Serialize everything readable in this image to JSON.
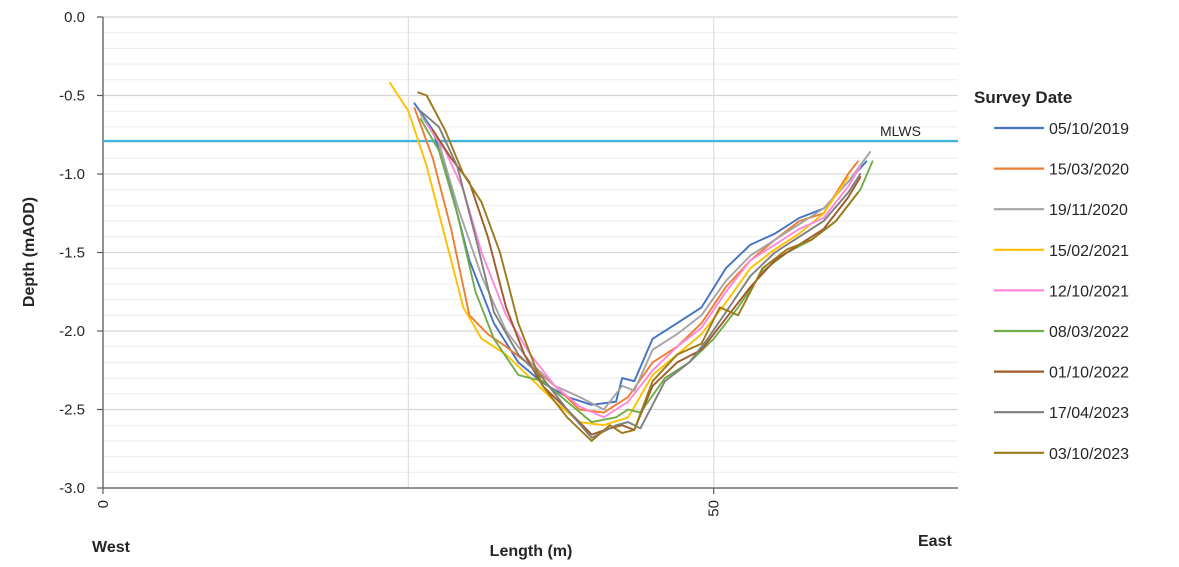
{
  "chart_data": {
    "type": "line",
    "xlabel": "Length (m)",
    "ylabel": "Depth (mAOD)",
    "xlim": [
      0,
      70
    ],
    "ylim": [
      -3.0,
      0.0
    ],
    "x_ticks": [
      0,
      50
    ],
    "y_ticks": [
      0.0,
      -0.5,
      -1.0,
      -1.5,
      -2.0,
      -2.5,
      -3.0
    ],
    "y_tick_labels": [
      "0.0",
      "-0.5",
      "-1.0",
      "-1.5",
      "-2.0",
      "-2.5",
      "-3.0"
    ],
    "x_tick_labels": [
      "0",
      "50"
    ],
    "x_end_labels": {
      "left": "West",
      "right": "East"
    },
    "grid": "major vertical, minor horizontal",
    "legend": {
      "title": "Survey Date",
      "placement": "right"
    },
    "reference_line": {
      "label": "MLWS",
      "y": -0.79,
      "color": "#3fb6e0"
    },
    "series": [
      {
        "name": "05/10/2019",
        "color": "#4472c4",
        "x": [
          25.5,
          27,
          28.5,
          30,
          32,
          34,
          36,
          38,
          40,
          42,
          42.5,
          43.5,
          45,
          47,
          49,
          51,
          53,
          55,
          57,
          59,
          61,
          62.5
        ],
        "y": [
          -0.55,
          -0.72,
          -1.1,
          -1.55,
          -1.95,
          -2.2,
          -2.33,
          -2.42,
          -2.47,
          -2.45,
          -2.3,
          -2.32,
          -2.05,
          -1.95,
          -1.85,
          -1.6,
          -1.45,
          -1.38,
          -1.28,
          -1.22,
          -1.05,
          -0.92
        ]
      },
      {
        "name": "15/03/2020",
        "color": "#ed7d31",
        "x": [
          25.5,
          27,
          28.5,
          30,
          31.5,
          33,
          35,
          37,
          39,
          41,
          43,
          45,
          47,
          49,
          51,
          53,
          55,
          57,
          59,
          61,
          61.8
        ],
        "y": [
          -0.58,
          -0.9,
          -1.35,
          -1.9,
          -2.02,
          -2.1,
          -2.22,
          -2.35,
          -2.5,
          -2.52,
          -2.42,
          -2.2,
          -2.1,
          -1.95,
          -1.72,
          -1.55,
          -1.42,
          -1.3,
          -1.25,
          -1.0,
          -0.92
        ]
      },
      {
        "name": "19/11/2020",
        "color": "#a5a5a5",
        "x": [
          26,
          27.5,
          29,
          31,
          33,
          35,
          37,
          39,
          41,
          42.5,
          43.5,
          45,
          47,
          49,
          51,
          53,
          55,
          57,
          59,
          61,
          62.8
        ],
        "y": [
          -0.62,
          -0.8,
          -1.2,
          -1.65,
          -2.0,
          -2.2,
          -2.35,
          -2.42,
          -2.5,
          -2.35,
          -2.38,
          -2.12,
          -2.02,
          -1.9,
          -1.68,
          -1.52,
          -1.42,
          -1.32,
          -1.22,
          -1.05,
          -0.86
        ]
      },
      {
        "name": "15/02/2021",
        "color": "#ffc000",
        "x": [
          23.5,
          25,
          26.5,
          28,
          29.5,
          31,
          33,
          35,
          37,
          39,
          41,
          43,
          45,
          47,
          49,
          51,
          53,
          55,
          57,
          59,
          61
        ],
        "y": [
          -0.42,
          -0.6,
          -0.95,
          -1.4,
          -1.85,
          -2.05,
          -2.15,
          -2.3,
          -2.45,
          -2.58,
          -2.6,
          -2.55,
          -2.28,
          -2.15,
          -2.02,
          -1.82,
          -1.6,
          -1.48,
          -1.38,
          -1.25,
          -1.02
        ]
      },
      {
        "name": "12/10/2021",
        "color": "#ff88dd",
        "x": [
          26.5,
          28,
          29.5,
          31,
          33,
          35,
          37,
          39,
          41,
          43,
          45,
          47,
          49,
          51,
          53,
          55,
          57,
          59,
          61,
          62
        ],
        "y": [
          -0.68,
          -0.85,
          -1.1,
          -1.5,
          -1.9,
          -2.15,
          -2.35,
          -2.48,
          -2.55,
          -2.45,
          -2.25,
          -2.1,
          -1.98,
          -1.75,
          -1.55,
          -1.45,
          -1.35,
          -1.28,
          -1.08,
          -0.95
        ]
      },
      {
        "name": "08/03/2022",
        "color": "#70ad47",
        "x": [
          26,
          27.5,
          29,
          30.5,
          32,
          34,
          36,
          38,
          40,
          42,
          43,
          44,
          46,
          48,
          50,
          52,
          54,
          56,
          58,
          60,
          62,
          63
        ],
        "y": [
          -0.65,
          -0.85,
          -1.25,
          -1.75,
          -2.05,
          -2.28,
          -2.32,
          -2.45,
          -2.58,
          -2.55,
          -2.5,
          -2.52,
          -2.3,
          -2.2,
          -2.05,
          -1.85,
          -1.62,
          -1.5,
          -1.42,
          -1.3,
          -1.1,
          -0.92
        ]
      },
      {
        "name": "01/10/2022",
        "color": "#a05a2c",
        "x": [
          27,
          28.5,
          30,
          31.5,
          33,
          34.5,
          36,
          38,
          40,
          41.5,
          42.5,
          43.5,
          45,
          47,
          49,
          51,
          53,
          55,
          57,
          59,
          61,
          62
        ],
        "y": [
          -0.72,
          -0.9,
          -1.05,
          -1.4,
          -1.85,
          -2.15,
          -2.35,
          -2.5,
          -2.66,
          -2.62,
          -2.6,
          -2.63,
          -2.35,
          -2.2,
          -2.12,
          -1.92,
          -1.72,
          -1.55,
          -1.45,
          -1.35,
          -1.15,
          -1.02
        ]
      },
      {
        "name": "17/04/2023",
        "color": "#7f7f7f",
        "x": [
          26,
          27.5,
          29,
          30.5,
          32,
          34,
          36,
          38,
          40,
          42,
          43,
          44,
          46,
          48,
          49.5,
          51,
          53,
          55,
          57,
          59,
          61,
          62
        ],
        "y": [
          -0.6,
          -0.7,
          -0.95,
          -1.4,
          -1.88,
          -2.15,
          -2.3,
          -2.5,
          -2.68,
          -2.6,
          -2.58,
          -2.62,
          -2.32,
          -2.2,
          -2.05,
          -1.88,
          -1.65,
          -1.5,
          -1.4,
          -1.3,
          -1.12,
          -1.0
        ]
      },
      {
        "name": "03/10/2023",
        "color": "#9a7a1a",
        "x": [
          25.8,
          26.5,
          28,
          29.5,
          31,
          32.5,
          34,
          36,
          38,
          40,
          41.5,
          42.5,
          43.5,
          45,
          47,
          49,
          50.5,
          52,
          54,
          56,
          58,
          60,
          61.8
        ],
        "y": [
          -0.48,
          -0.5,
          -0.72,
          -1.0,
          -1.18,
          -1.5,
          -1.95,
          -2.35,
          -2.55,
          -2.7,
          -2.6,
          -2.65,
          -2.63,
          -2.32,
          -2.15,
          -2.08,
          -1.85,
          -1.9,
          -1.6,
          -1.48,
          -1.42,
          -1.3,
          -1.12
        ]
      }
    ]
  }
}
